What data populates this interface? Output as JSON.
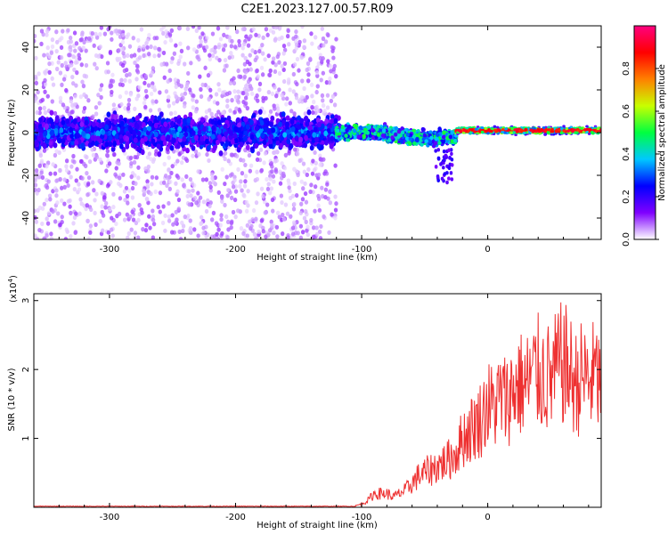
{
  "title": "C2E1.2023.127.00.57.R09",
  "chart_data": [
    {
      "type": "heatmap",
      "xlabel": "Height of straight line (km)",
      "ylabel": "Frequency (Hz)",
      "xlim": [
        -360,
        90
      ],
      "ylim": [
        -50,
        50
      ],
      "xticks": [
        -300,
        -200,
        -100,
        0
      ],
      "yticks": [
        -40,
        -20,
        0,
        20,
        40
      ],
      "colorbar": {
        "label": "Normalized spectral amplitude",
        "range": [
          0,
          1
        ],
        "ticks": [
          0.0,
          0.2,
          0.4,
          0.6,
          0.8
        ],
        "colormap": "rainbow",
        "colors": [
          "#ffffff",
          "#7f00ff",
          "#0000ff",
          "#00c8ff",
          "#00ff40",
          "#c8ff00",
          "#ff8000",
          "#ff0000",
          "#ff0080"
        ]
      },
      "grid": false
    },
    {
      "type": "line",
      "xlabel": "Height of straight line (km)",
      "ylabel": "SNR (10 * v/v)",
      "yscale_label": "(x10",
      "yscale_exp": "4",
      "yscale_close": ")",
      "xlim": [
        -360,
        90
      ],
      "ylim": [
        0,
        3.1
      ],
      "xticks": [
        -300,
        -200,
        -100,
        0
      ],
      "yticks": [
        1,
        2,
        3
      ],
      "line_color": "#ee3030",
      "grid": false,
      "series": [
        {
          "x": [
            -360,
            -300,
            -200,
            -120,
            -110,
            -105,
            -100,
            -95,
            -90,
            -85,
            -80,
            -75,
            -70,
            -65,
            -60,
            -55,
            -50,
            -45,
            -40,
            -35,
            -30,
            -25,
            -20,
            -15,
            -10,
            -5,
            0,
            5,
            10,
            15,
            20,
            25,
            30,
            35,
            40,
            45,
            50,
            55,
            60,
            65,
            70,
            75,
            80,
            85,
            90
          ],
          "y": [
            0.0,
            0.0,
            0.0,
            0.0,
            0.01,
            0.02,
            0.05,
            0.1,
            0.2,
            0.2,
            0.2,
            0.15,
            0.2,
            0.25,
            0.35,
            0.45,
            0.5,
            0.55,
            0.6,
            0.65,
            0.7,
            0.8,
            1.0,
            1.1,
            1.2,
            1.3,
            1.5,
            1.45,
            1.6,
            1.55,
            1.7,
            1.8,
            1.75,
            1.9,
            1.95,
            1.9,
            1.85,
            2.0,
            2.1,
            1.95,
            1.8,
            1.9,
            1.85,
            1.9,
            1.8
          ]
        }
      ]
    }
  ]
}
